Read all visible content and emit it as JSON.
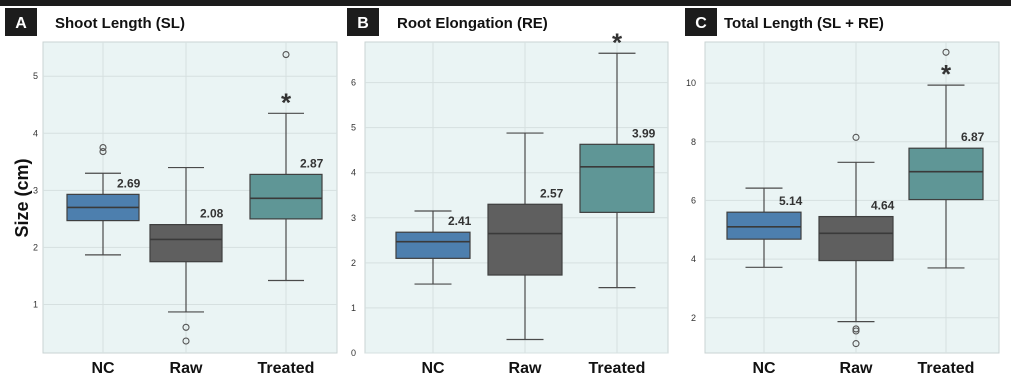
{
  "figure": {
    "y_axis_label": "Size (cm)"
  },
  "chart_data": [
    {
      "type": "box",
      "panel_letter": "A",
      "title": "Shoot Length (SL)",
      "categories": [
        "NC",
        "Raw",
        "Treated"
      ],
      "ylim": [
        0.15,
        5.6
      ],
      "yticks": [
        1,
        2,
        3,
        4,
        5
      ],
      "grid": true,
      "boxes": [
        {
          "category": "NC",
          "whisker_low": 1.87,
          "q1": 2.47,
          "median": 2.7,
          "q3": 2.93,
          "whisker_high": 3.3,
          "outliers": [
            3.68,
            3.75
          ],
          "label": "2.69",
          "significant": false,
          "color": "#4d7fae"
        },
        {
          "category": "Raw",
          "whisker_low": 0.87,
          "q1": 1.75,
          "median": 2.14,
          "q3": 2.4,
          "whisker_high": 3.4,
          "outliers": [
            0.6,
            0.36
          ],
          "label": "2.08",
          "significant": false,
          "color": "#5f5f5f"
        },
        {
          "category": "Treated",
          "whisker_low": 1.42,
          "q1": 2.5,
          "median": 2.86,
          "q3": 3.28,
          "whisker_high": 4.35,
          "outliers": [
            5.38
          ],
          "label": "2.87",
          "significant": true,
          "color": "#5f9696"
        }
      ]
    },
    {
      "type": "box",
      "panel_letter": "B",
      "title": "Root Elongation (RE)",
      "categories": [
        "NC",
        "Raw",
        "Treated"
      ],
      "ylim": [
        0,
        6.9
      ],
      "yticks": [
        0,
        1,
        2,
        3,
        4,
        5,
        6
      ],
      "grid": true,
      "boxes": [
        {
          "category": "NC",
          "whisker_low": 1.53,
          "q1": 2.1,
          "median": 2.47,
          "q3": 2.68,
          "whisker_high": 3.15,
          "outliers": [],
          "label": "2.41",
          "significant": false,
          "color": "#4d7fae"
        },
        {
          "category": "Raw",
          "whisker_low": 0.3,
          "q1": 1.73,
          "median": 2.65,
          "q3": 3.3,
          "whisker_high": 4.88,
          "outliers": [],
          "label": "2.57",
          "significant": false,
          "color": "#5f5f5f"
        },
        {
          "category": "Treated",
          "whisker_low": 1.45,
          "q1": 3.12,
          "median": 4.13,
          "q3": 4.63,
          "whisker_high": 6.65,
          "outliers": [],
          "label": "3.99",
          "significant": true,
          "color": "#5f9696"
        }
      ]
    },
    {
      "type": "box",
      "panel_letter": "C",
      "title": "Total Length (SL + RE)",
      "categories": [
        "NC",
        "Raw",
        "Treated"
      ],
      "ylim": [
        0.8,
        11.4
      ],
      "yticks": [
        2,
        4,
        6,
        8,
        10
      ],
      "grid": true,
      "boxes": [
        {
          "category": "NC",
          "whisker_low": 3.72,
          "q1": 4.68,
          "median": 5.1,
          "q3": 5.6,
          "whisker_high": 6.42,
          "outliers": [],
          "label": "5.14",
          "significant": false,
          "color": "#4d7fae"
        },
        {
          "category": "Raw",
          "whisker_low": 1.87,
          "q1": 3.95,
          "median": 4.88,
          "q3": 5.45,
          "whisker_high": 7.3,
          "outliers": [
            8.15,
            1.62,
            1.55,
            1.12
          ],
          "label": "4.64",
          "significant": false,
          "color": "#5f5f5f"
        },
        {
          "category": "Treated",
          "whisker_low": 3.7,
          "q1": 6.03,
          "median": 6.98,
          "q3": 7.78,
          "whisker_high": 9.93,
          "outliers": [
            11.05
          ],
          "label": "6.87",
          "significant": true,
          "color": "#5f9696"
        }
      ]
    }
  ]
}
